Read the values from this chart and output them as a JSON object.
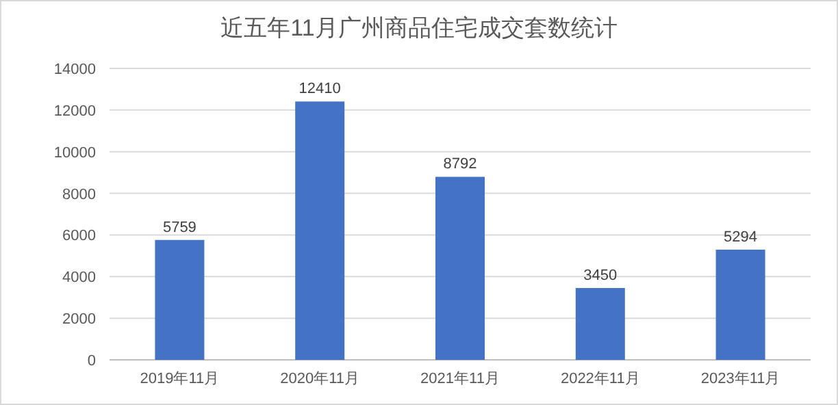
{
  "chart_data": {
    "type": "bar",
    "title": "近五年11月广州商品住宅成交套数统计",
    "categories": [
      "2019年11月",
      "2020年11月",
      "2021年11月",
      "2022年11月",
      "2023年11月"
    ],
    "values": [
      5759,
      12410,
      8792,
      3450,
      5294
    ],
    "color": "#4472c4",
    "ylim": [
      0,
      14000
    ],
    "yticks": [
      0,
      2000,
      4000,
      6000,
      8000,
      10000,
      12000,
      14000
    ],
    "grid": "y",
    "data_labels": true
  }
}
